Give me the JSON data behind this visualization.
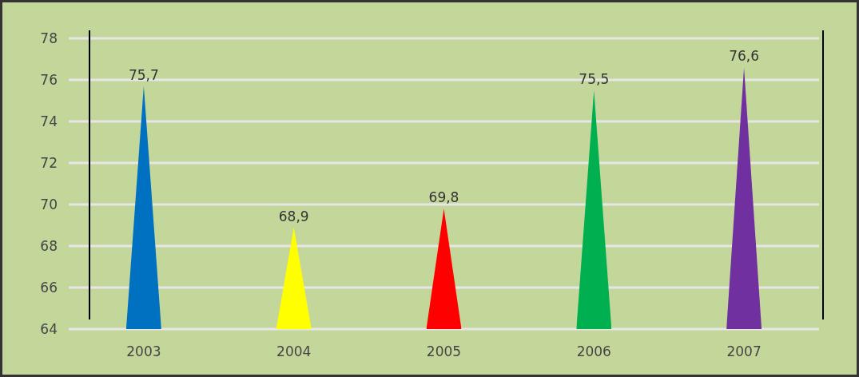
{
  "chart_data": {
    "type": "bar",
    "categories": [
      "2003",
      "2004",
      "2005",
      "2006",
      "2007"
    ],
    "values": [
      75.7,
      68.9,
      69.8,
      75.5,
      76.6
    ],
    "colors": [
      "#0070c0",
      "#ffff00",
      "#ff0000",
      "#00b050",
      "#7030a0"
    ],
    "value_labels": [
      "75,7",
      "68,9",
      "69,8",
      "75,5",
      "76,6"
    ],
    "ylim": [
      64,
      78
    ],
    "yticks": [
      64,
      66,
      68,
      70,
      72,
      74,
      76,
      78
    ],
    "grid": "y"
  }
}
